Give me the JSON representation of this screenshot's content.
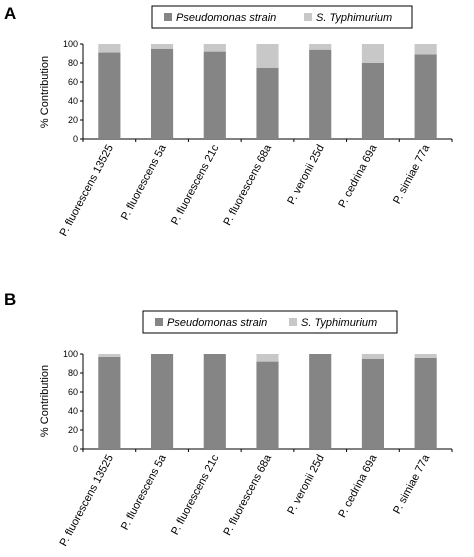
{
  "chart_data": [
    {
      "panel": "A",
      "type": "bar",
      "stacked": true,
      "ylabel": "% Contribution",
      "ylim": [
        0,
        100
      ],
      "yticks": [
        0,
        20,
        40,
        60,
        80,
        100
      ],
      "legend_position": "top",
      "categories": [
        "P. fluorescens 13525",
        "P. fluorescens 5a",
        "P. fluorescens 21c",
        "P. fluorescens 68a",
        "P. veronii 25d",
        "P. cedrina 69a",
        "P. simiae 77a"
      ],
      "series": [
        {
          "name": "Pseudomonas strain",
          "color": "#858585",
          "values": [
            91,
            95,
            92,
            75,
            94,
            80,
            89
          ]
        },
        {
          "name": "S. Typhimurium",
          "color": "#c8c8c8",
          "values": [
            9,
            5,
            8,
            25,
            6,
            20,
            11
          ]
        }
      ]
    },
    {
      "panel": "B",
      "type": "bar",
      "stacked": true,
      "ylabel": "% Contribution",
      "ylim": [
        0,
        100
      ],
      "yticks": [
        0,
        20,
        40,
        60,
        80,
        100
      ],
      "legend_position": "top",
      "categories": [
        "P. fluorescens 13525",
        "P. fluorescens 5a",
        "P. fluorescens 21c",
        "P. fluorescens 68a",
        "P. veronii 25d",
        "P. cedrina 69a",
        "P. simiae 77a"
      ],
      "series": [
        {
          "name": "Pseudomonas strain",
          "color": "#858585",
          "values": [
            97,
            100,
            100,
            92,
            100,
            95,
            96
          ]
        },
        {
          "name": "S. Typhimurium",
          "color": "#c8c8c8",
          "values": [
            3,
            0,
            0,
            8,
            0,
            5,
            4
          ]
        }
      ]
    }
  ]
}
